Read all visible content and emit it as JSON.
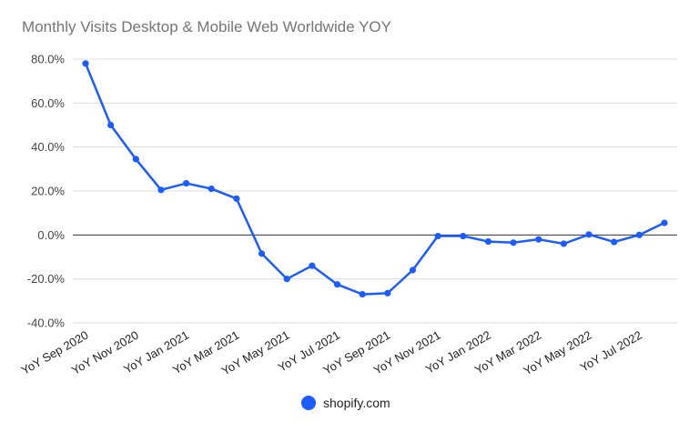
{
  "chart_data": {
    "type": "line",
    "title": "Monthly Visits Desktop & Mobile Web Worldwide YOY",
    "xlabel": "",
    "ylabel": "",
    "ylim": [
      -40,
      80
    ],
    "yticks": [
      "80.0%",
      "60.0%",
      "40.0%",
      "20.0%",
      "0.0%",
      "-20.0%",
      "-40.0%"
    ],
    "ytick_values": [
      80,
      60,
      40,
      20,
      0,
      -20,
      -40
    ],
    "x": [
      "YoY Sep 2020",
      "YoY Oct 2020",
      "YoY Nov 2020",
      "YoY Dec 2020",
      "YoY Jan 2021",
      "YoY Feb 2021",
      "YoY Mar 2021",
      "YoY Apr 2021",
      "YoY May 2021",
      "YoY Jun 2021",
      "YoY Jul 2021",
      "YoY Aug 2021",
      "YoY Sep 2021",
      "YoY Oct 2021",
      "YoY Nov 2021",
      "YoY Dec 2021",
      "YoY Jan 2022",
      "YoY Feb 2022",
      "YoY Mar 2022",
      "YoY Apr 2022",
      "YoY May 2022",
      "YoY Jun 2022",
      "YoY Jul 2022",
      "YoY Aug 2022"
    ],
    "xtick_labels": [
      "YoY Sep 2020",
      "YoY Nov 2020",
      "YoY Jan 2021",
      "YoY Mar 2021",
      "YoY May 2021",
      "YoY Jul 2021",
      "YoY Sep 2021",
      "YoY Nov 2021",
      "YoY Jan 2022",
      "YoY Mar 2022",
      "YoY May 2022",
      "YoY Jul 2022"
    ],
    "series": [
      {
        "name": "shopify.com",
        "color": "#1a5cff",
        "values": [
          78,
          50,
          34.5,
          20.5,
          23.5,
          21,
          16.5,
          -8.5,
          -20,
          -14,
          -22.5,
          -27,
          -26.5,
          -16,
          -0.5,
          -0.5,
          -3,
          -3.5,
          -2,
          -4,
          0.2,
          -3.2,
          0,
          5.5
        ]
      }
    ],
    "grid": true,
    "legend": "bottom-center"
  }
}
